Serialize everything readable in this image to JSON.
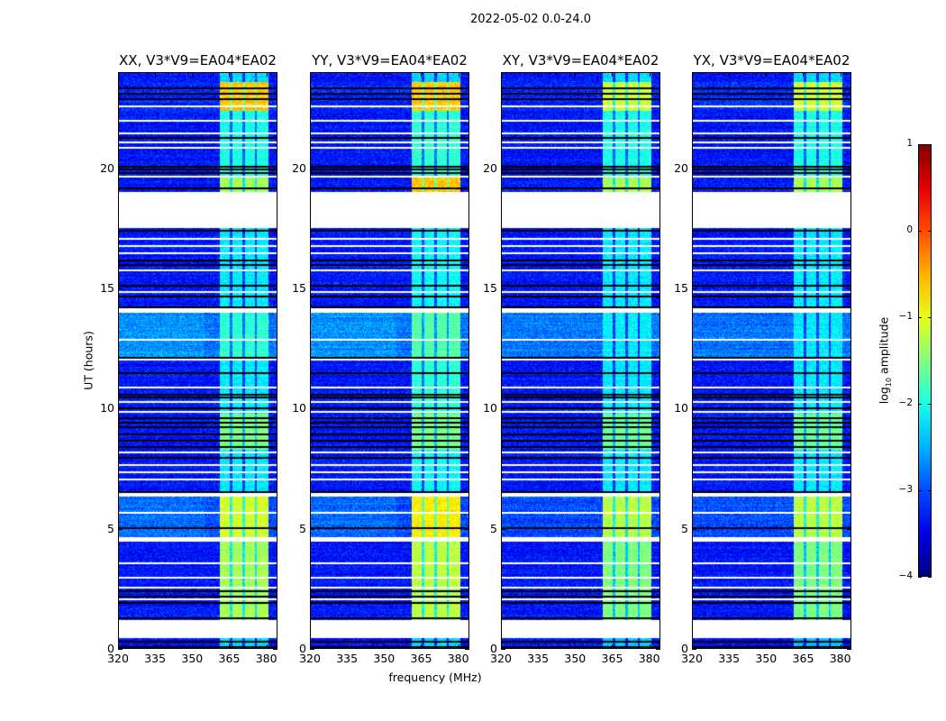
{
  "suptitle": "2022-05-02 0.0-24.0",
  "chart_data": {
    "type": "heatmap",
    "title": "2022-05-02 0.0-24.0",
    "xlabel": "frequency (MHz)",
    "ylabel": "UT (hours)",
    "xlim": [
      320,
      384.5
    ],
    "ylim": [
      0,
      24
    ],
    "xticks": [
      320,
      335,
      350,
      365,
      380
    ],
    "yticks": [
      0,
      5,
      10,
      15,
      20
    ],
    "colorbar": {
      "label_prefix": "log",
      "label_sub": "10",
      "label_suffix": " amplitude",
      "range": [
        -4,
        1
      ],
      "ticks": [
        1,
        0,
        -1,
        -2,
        -3,
        -4
      ],
      "colormap": "jet"
    },
    "panels": [
      {
        "title": "XX, V3*V9=EA04*EA02"
      },
      {
        "title": "YY, V3*V9=EA04*EA02"
      },
      {
        "title": "XY, V3*V9=EA04*EA02"
      },
      {
        "title": "YX, V3*V9=EA04*EA02"
      }
    ],
    "band_subchannels_mhz": [
      [
        361,
        365.3
      ],
      [
        366.3,
        370.3
      ],
      [
        371.3,
        375.3
      ],
      [
        376.3,
        381
      ]
    ],
    "flagged_hours": [
      [
        0.45,
        1.2
      ],
      [
        1.4,
        1.55
      ],
      [
        4.45,
        4.65
      ],
      [
        6.35,
        6.5
      ],
      [
        11.0,
        11.15
      ],
      [
        11.95,
        12.1
      ],
      [
        14.0,
        14.2
      ],
      [
        17.5,
        19.0
      ],
      [
        19.6,
        19.7
      ],
      [
        20.3,
        20.55
      ],
      [
        21.8,
        21.9
      ],
      [
        22.3,
        22.4
      ]
    ],
    "thin_white_hours": [
      0.7,
      2.1,
      2.6,
      3.0,
      3.6,
      5.7,
      7.1,
      7.4,
      7.7,
      8.2,
      9.9,
      10.3,
      10.9,
      12.9,
      14.9,
      15.8,
      16.5,
      16.8,
      17.1,
      20.9,
      21.1,
      21.5,
      22.0,
      22.6
    ],
    "black_line_hours": [
      0.1,
      0.35,
      1.3,
      1.95,
      2.2,
      2.45,
      5.05,
      6.55,
      8.0,
      8.45,
      8.7,
      8.95,
      9.25,
      9.45,
      9.65,
      10.05,
      10.5,
      10.6,
      11.5,
      12.15,
      14.25,
      14.7,
      15.15,
      16.0,
      16.2,
      17.45,
      19.2,
      19.85,
      20.0,
      20.1,
      21.3,
      22.9,
      23.15,
      23.35
    ],
    "segments": [
      {
        "hours": [
          0,
          0.45
        ],
        "background": -3.3,
        "band": [
          -2.3,
          -2.3,
          -2.4,
          -2.4
        ]
      },
      {
        "hours": [
          1.2,
          4.45
        ],
        "background": -3.3,
        "band": [
          -1.3,
          -1.2,
          -1.5,
          -1.5
        ]
      },
      {
        "hours": [
          4.65,
          6.35
        ],
        "background": -3.0,
        "band": [
          -1.1,
          -0.8,
          -1.2,
          -1.2
        ]
      },
      {
        "hours": [
          6.5,
          8.3
        ],
        "background": -3.3,
        "band": [
          -2.2,
          -2.1,
          -2.2,
          -2.2
        ]
      },
      {
        "hours": [
          8.3,
          9.8
        ],
        "background": -3.3,
        "band": [
          -1.5,
          -1.5,
          -1.6,
          -1.6
        ]
      },
      {
        "hours": [
          9.8,
          12.0
        ],
        "background": -3.3,
        "band": [
          -2.2,
          -1.9,
          -2.2,
          -2.2
        ]
      },
      {
        "hours": [
          12.1,
          14.0
        ],
        "background": -2.8,
        "band": [
          -1.9,
          -1.7,
          -2.2,
          -2.2
        ]
      },
      {
        "hours": [
          14.2,
          17.5
        ],
        "background": -3.3,
        "band": [
          -2.2,
          -2.1,
          -2.2,
          -2.2
        ]
      },
      {
        "hours": [
          19.0,
          19.6
        ],
        "background": -3.3,
        "band": [
          -1.3,
          -0.6,
          -1.3,
          -1.3
        ]
      },
      {
        "hours": [
          19.7,
          22.4
        ],
        "background": -3.3,
        "band": [
          -2.0,
          -1.9,
          -2.0,
          -2.0
        ]
      },
      {
        "hours": [
          22.4,
          23.6
        ],
        "background": -3.2,
        "band": [
          -0.6,
          -0.6,
          -1.1,
          -1.1
        ]
      },
      {
        "hours": [
          23.6,
          24.0
        ],
        "background": -3.3,
        "band": [
          -2.3,
          -2.3,
          -2.3,
          -2.3
        ]
      }
    ]
  }
}
